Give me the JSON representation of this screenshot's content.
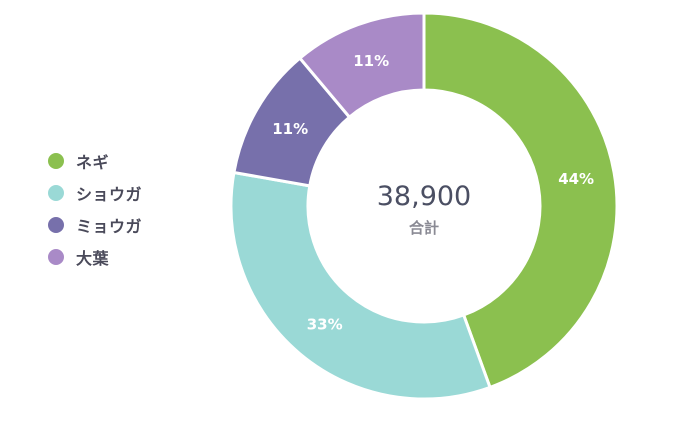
{
  "chart_data": {
    "type": "pie",
    "categories": [
      "ネギ",
      "ショウガ",
      "ミョウガ",
      "大葉"
    ],
    "values": [
      44,
      33,
      11,
      11
    ],
    "labels": [
      "44%",
      "33%",
      "11%",
      "11%"
    ],
    "colors": [
      "#8bc04f",
      "#9ad9d6",
      "#7770ab",
      "#a98ac7"
    ],
    "total": "38,900",
    "total_caption": "合計",
    "legend_position": "left"
  }
}
